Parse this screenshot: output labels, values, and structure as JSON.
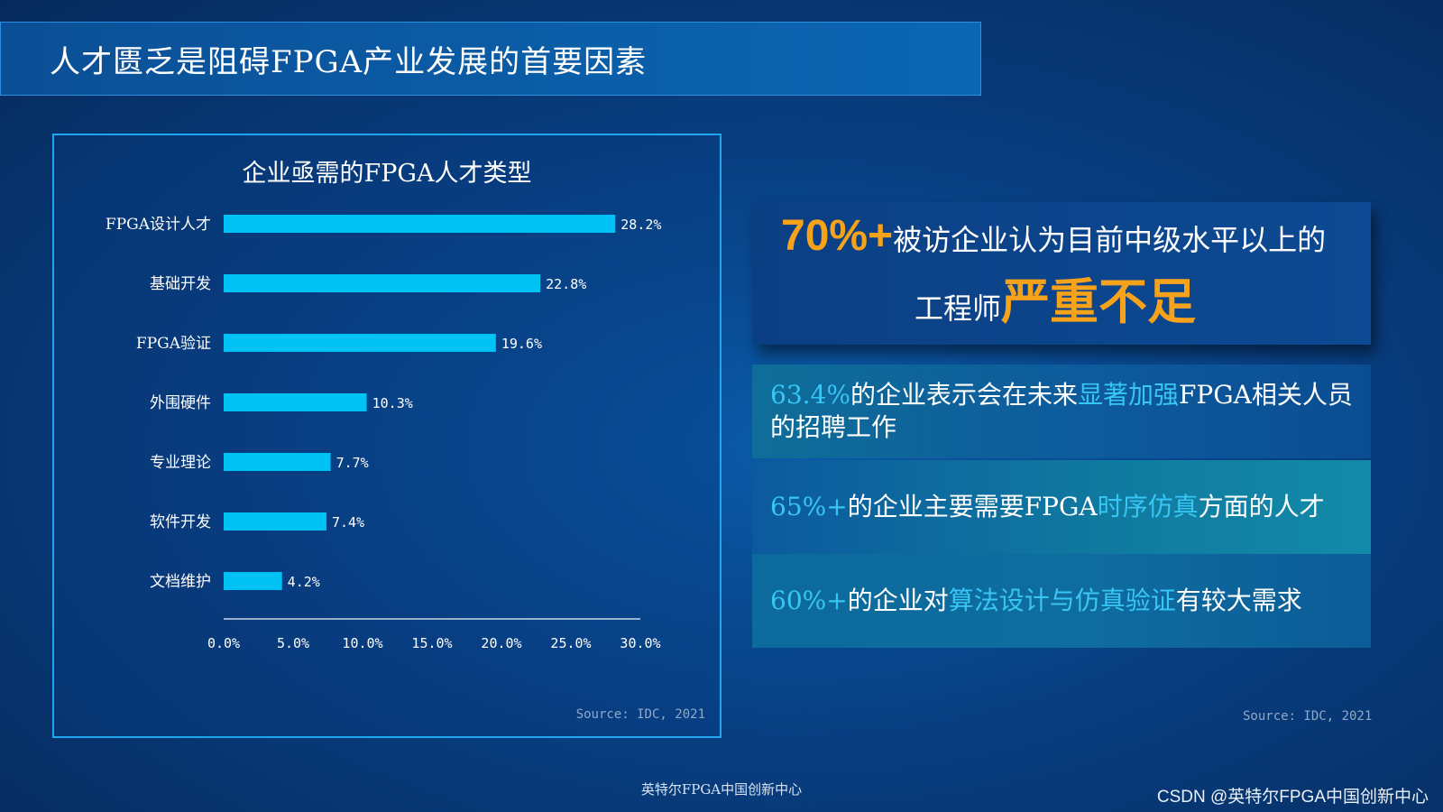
{
  "page_title": "人才匮乏是阻碍FPGA产业发展的首要因素",
  "chart_data": {
    "type": "bar",
    "orientation": "horizontal",
    "title": "企业亟需的FPGA人才类型",
    "categories": [
      "FPGA设计人才",
      "基础开发",
      "FPGA验证",
      "外围硬件",
      "专业理论",
      "软件开发",
      "文档维护"
    ],
    "values": [
      28.2,
      22.8,
      19.6,
      10.3,
      7.7,
      7.4,
      4.2
    ],
    "value_labels": [
      "28.2%",
      "22.8%",
      "19.6%",
      "10.3%",
      "7.7%",
      "7.4%",
      "4.2%"
    ],
    "xlim": [
      0,
      30
    ],
    "x_ticks": [
      "0.0%",
      "5.0%",
      "10.0%",
      "15.0%",
      "20.0%",
      "25.0%",
      "30.0%"
    ],
    "bar_color": "#00c3f5",
    "source": "Source: IDC, 2021"
  },
  "highlight": {
    "big_number": "70%+",
    "text_1": "被访企业认为目前中级水平以上的",
    "text_2": "工程师",
    "emphasis": "严重不足"
  },
  "stats": [
    {
      "value": "63.4%",
      "text_a": "的企业表示会在未来",
      "emphasis": "显著加强",
      "text_b": "FPGA相关人员的招聘工作"
    },
    {
      "value": "65%+",
      "text_a": "的企业主要需要FPGA",
      "emphasis": "时序仿真",
      "text_b": "方面的人才"
    },
    {
      "value": "60%+",
      "text_a": "的企业对",
      "emphasis": "算法设计与仿真验证",
      "text_b": "有较大需求"
    }
  ],
  "stats_source": "Source: IDC, 2021",
  "footer_center": "英特尔FPGA中国创新中心",
  "footer_watermark": "CSDN @英特尔FPGA中国创新中心",
  "colors": {
    "accent_orange": "#f7a21b",
    "accent_cyan": "#38c6f5",
    "bar": "#00c3f5"
  }
}
